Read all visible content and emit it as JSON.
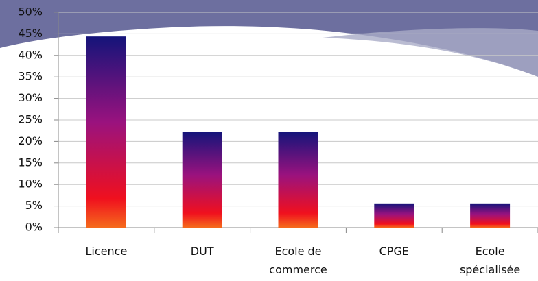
{
  "chart_data": {
    "type": "bar",
    "categories": [
      "Licence",
      "DUT",
      "Ecole de commerce",
      "CPGE",
      "Ecole spécialisée"
    ],
    "values": [
      44.4,
      22.2,
      22.2,
      5.6,
      5.6
    ],
    "ylim": [
      0,
      50
    ],
    "yticks": [
      {
        "value": 0,
        "label": "0%"
      },
      {
        "value": 5,
        "label": "5%"
      },
      {
        "value": 10,
        "label": "10%"
      },
      {
        "value": 15,
        "label": "15%"
      },
      {
        "value": 20,
        "label": "20%"
      },
      {
        "value": 25,
        "label": "25%"
      },
      {
        "value": 30,
        "label": "30%"
      },
      {
        "value": 35,
        "label": "35%"
      },
      {
        "value": 40,
        "label": "40%"
      },
      {
        "value": 45,
        "label": "45%"
      },
      {
        "value": 50,
        "label": "50%"
      }
    ],
    "grid": true
  }
}
